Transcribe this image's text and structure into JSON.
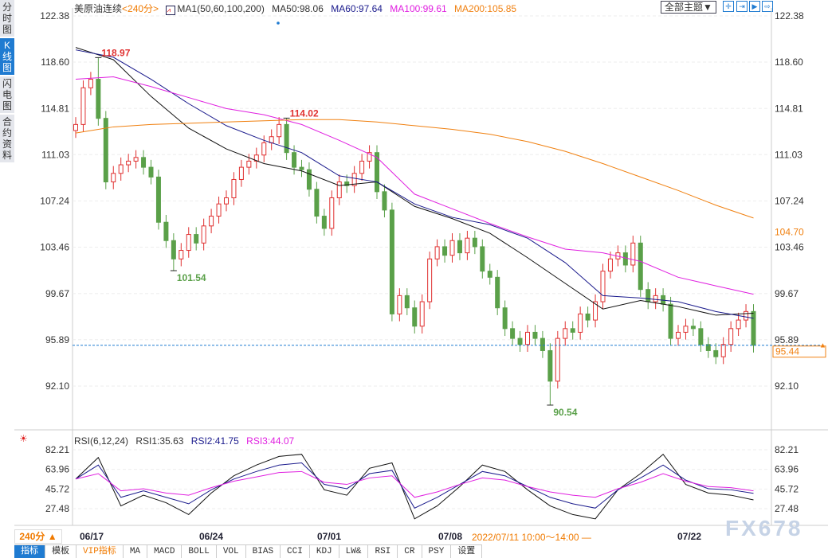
{
  "sidebar": {
    "tabs": [
      "分时图",
      "K线图",
      "闪电图",
      "合约资料"
    ],
    "active": 1
  },
  "header": {
    "symbol": "美原油连续",
    "period": "<240分>",
    "ma_name": "MA1(50,60,100,200)",
    "ma50": "MA50:98.06",
    "ma60": "MA60:97.64",
    "ma100": "MA100:99.61",
    "ma200": "MA200:105.85"
  },
  "toolbar": {
    "theme": "全部主题▼",
    "icons": [
      "crosshair-icon",
      "zoom-in-icon",
      "zoom-right-icon",
      "exit-icon"
    ]
  },
  "rsi_header": {
    "name": "RSI(6,12,24)",
    "rsi1": "RSI1:35.63",
    "rsi2": "RSI2:41.75",
    "rsi3": "RSI3:44.07"
  },
  "bottom": {
    "period": "240分 ▲",
    "dates": [
      "06/17",
      "06/24",
      "07/01",
      "07/08",
      "07/22"
    ],
    "range": "2022/07/11 10:00～14:00 —",
    "watermark": "FX678"
  },
  "tabs": [
    "指标",
    "模板",
    "VIP指标",
    "MA",
    "MACD",
    "BOLL",
    "VOL",
    "BIAS",
    "CCI",
    "KDJ",
    "LW&",
    "RSI",
    "CR",
    "PSY",
    "设置"
  ],
  "colors": {
    "up": "#e03030",
    "down": "#5aa049",
    "ma50": "#111111",
    "ma60": "#1a1a8c",
    "ma100": "#e020e0",
    "ma200": "#f08010",
    "last": "#1f7bd1"
  },
  "chart_data": [
    {
      "type": "candlestick",
      "title": "美原油连续 240分",
      "ylim": [
        92.1,
        122.38
      ],
      "yticks": [
        "122.38",
        "118.60",
        "114.81",
        "111.03",
        "107.24",
        "103.46",
        "99.67",
        "95.89",
        "92.10"
      ],
      "closes": [
        113.5,
        116.5,
        117.2,
        114.0,
        108.8,
        109.5,
        110.2,
        110.5,
        110.8,
        110.0,
        109.2,
        105.5,
        104.0,
        102.5,
        103.2,
        104.5,
        103.8,
        105.2,
        106.0,
        107.0,
        107.5,
        109.0,
        110.0,
        110.5,
        111.0,
        112.0,
        112.5,
        113.5,
        111.2,
        110.0,
        109.8,
        108.2,
        106.0,
        105.0,
        107.5,
        108.8,
        108.5,
        109.5,
        110.5,
        111.2,
        108.0,
        106.5,
        98.0,
        99.5,
        98.5,
        97.0,
        99.0,
        102.5,
        103.5,
        102.8,
        104.0,
        103.0,
        104.2,
        103.5,
        101.5,
        101.0,
        98.5,
        96.8,
        96.0,
        95.5,
        96.5,
        96.0,
        95.0,
        92.5,
        96.0,
        96.8,
        96.5,
        98.0,
        97.5,
        99.0,
        101.5,
        102.5,
        103.0,
        102.0,
        103.8,
        100.0,
        99.0,
        99.5,
        98.8,
        96.0,
        96.5,
        97.0,
        96.8,
        95.5,
        95.0,
        94.5,
        95.5,
        96.8,
        97.5,
        98.2,
        95.44
      ],
      "annotations": [
        {
          "index": 3,
          "kind": "high",
          "label": "118.97",
          "value": 118.97
        },
        {
          "index": 13,
          "kind": "low",
          "label": "101.54",
          "value": 101.54
        },
        {
          "index": 28,
          "kind": "high",
          "label": "114.02",
          "value": 114.02
        },
        {
          "index": 63,
          "kind": "low",
          "label": "90.54",
          "value": 90.54
        }
      ],
      "ma_step": 5,
      "series": [
        {
          "name": "MA50",
          "key": "ma50",
          "values": [
            119.8,
            118.8,
            115.8,
            113.2,
            111.5,
            110.3,
            109.7,
            108.5,
            108.8,
            106.8,
            105.8,
            104.6,
            102.6,
            100.5,
            98.4,
            99.1,
            98.6,
            97.9,
            98.06
          ]
        },
        {
          "name": "MA60",
          "key": "ma60",
          "values": [
            119.6,
            119.0,
            117.2,
            115.2,
            113.4,
            112.2,
            111.2,
            109.3,
            108.8,
            107.0,
            105.9,
            105.3,
            104.2,
            102.2,
            99.5,
            99.3,
            99.0,
            98.2,
            97.64
          ]
        },
        {
          "name": "MA100",
          "key": "ma100",
          "values": [
            117.2,
            117.4,
            116.6,
            115.7,
            114.8,
            114.3,
            113.5,
            112.2,
            110.8,
            107.8,
            106.6,
            105.4,
            104.3,
            103.3,
            103.0,
            102.3,
            101.0,
            100.3,
            99.61
          ]
        },
        {
          "name": "MA200",
          "key": "ma200",
          "values": [
            112.8,
            113.3,
            113.5,
            113.6,
            113.7,
            113.8,
            113.9,
            113.9,
            113.7,
            113.4,
            113.1,
            112.7,
            112.1,
            111.3,
            110.3,
            109.2,
            108.1,
            106.9,
            105.85
          ]
        }
      ],
      "last_price": "95.44",
      "marker_label": "104.70",
      "marker_value": 104.7
    },
    {
      "type": "line",
      "title": "RSI(6,12,24)",
      "ylim": [
        27.48,
        82.21
      ],
      "yticks": [
        "82.21",
        "63.96",
        "45.72",
        "27.48"
      ],
      "step": 3,
      "series": [
        {
          "name": "RSI1",
          "key": "ma50",
          "values": [
            55,
            75,
            30,
            40,
            33,
            22,
            42,
            58,
            68,
            76,
            78,
            45,
            40,
            65,
            70,
            18,
            30,
            48,
            68,
            62,
            45,
            30,
            22,
            18,
            45,
            60,
            78,
            50,
            42,
            40,
            35.63
          ]
        },
        {
          "name": "RSI2",
          "key": "ma60",
          "values": [
            55,
            68,
            38,
            44,
            38,
            32,
            45,
            55,
            62,
            68,
            70,
            50,
            46,
            60,
            63,
            28,
            38,
            50,
            62,
            58,
            48,
            38,
            32,
            28,
            45,
            56,
            68,
            54,
            46,
            45,
            41.75
          ]
        },
        {
          "name": "RSI3",
          "key": "ma100",
          "values": [
            55,
            60,
            44,
            46,
            42,
            40,
            47,
            53,
            57,
            61,
            62,
            52,
            50,
            56,
            58,
            38,
            43,
            50,
            56,
            54,
            48,
            43,
            40,
            38,
            46,
            52,
            60,
            53,
            48,
            47,
            44.07
          ]
        }
      ]
    }
  ]
}
